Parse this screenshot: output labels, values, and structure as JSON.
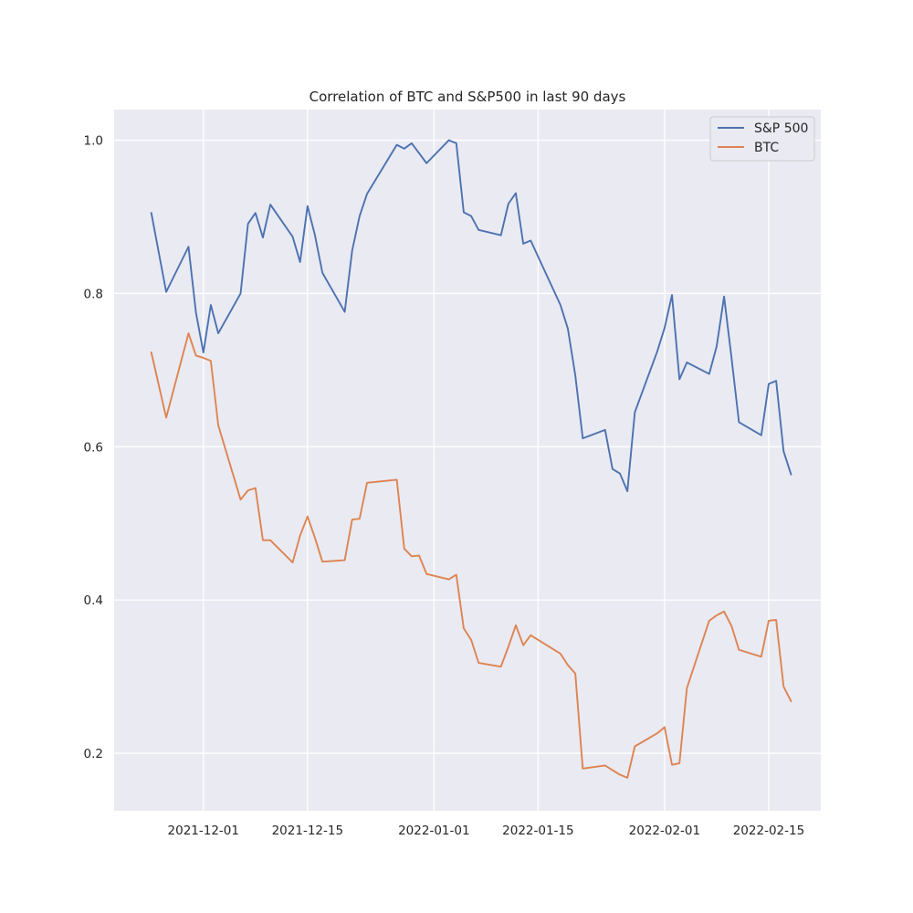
{
  "chart_data": {
    "type": "line",
    "title": "Correlation of BTC and S&P500 in last 90 days",
    "xlabel": "",
    "ylabel": "",
    "x_axis_type": "date",
    "xlim": [
      "2021-11-19",
      "2022-02-22"
    ],
    "ylim": [
      0.125,
      1.04
    ],
    "xticks": [
      "2021-12-01",
      "2021-12-15",
      "2022-01-01",
      "2022-01-15",
      "2022-02-01",
      "2022-02-15"
    ],
    "yticks": [
      0.2,
      0.4,
      0.6,
      0.8,
      1.0
    ],
    "ytick_labels": [
      "0.2",
      "0.4",
      "0.6",
      "0.8",
      "1.0"
    ],
    "grid": true,
    "legend_position": "top-right",
    "background": "#eaeaf2",
    "x": [
      "2021-11-24",
      "2021-11-26",
      "2021-11-29",
      "2021-11-30",
      "2021-12-01",
      "2021-12-02",
      "2021-12-03",
      "2021-12-06",
      "2021-12-07",
      "2021-12-08",
      "2021-12-09",
      "2021-12-10",
      "2021-12-13",
      "2021-12-14",
      "2021-12-15",
      "2021-12-16",
      "2021-12-17",
      "2021-12-20",
      "2021-12-21",
      "2021-12-22",
      "2021-12-23",
      "2021-12-27",
      "2021-12-28",
      "2021-12-29",
      "2021-12-30",
      "2021-12-31",
      "2022-01-03",
      "2022-01-04",
      "2022-01-05",
      "2022-01-06",
      "2022-01-07",
      "2022-01-10",
      "2022-01-11",
      "2022-01-12",
      "2022-01-13",
      "2022-01-14",
      "2022-01-18",
      "2022-01-19",
      "2022-01-20",
      "2022-01-21",
      "2022-01-24",
      "2022-01-25",
      "2022-01-26",
      "2022-01-27",
      "2022-01-28",
      "2022-01-31",
      "2022-02-01",
      "2022-02-02",
      "2022-02-03",
      "2022-02-04",
      "2022-02-07",
      "2022-02-08",
      "2022-02-09",
      "2022-02-10",
      "2022-02-11",
      "2022-02-14",
      "2022-02-15",
      "2022-02-16",
      "2022-02-17",
      "2022-02-18"
    ],
    "series": [
      {
        "name": "S&P 500",
        "color": "#4c72b0",
        "values": [
          0.905,
          0.802,
          0.861,
          0.775,
          0.723,
          0.785,
          0.748,
          0.8,
          0.891,
          0.905,
          0.873,
          0.916,
          0.874,
          0.841,
          0.914,
          0.876,
          0.827,
          0.776,
          0.856,
          0.901,
          0.93,
          0.994,
          0.989,
          0.996,
          0.983,
          0.97,
          1.0,
          0.996,
          0.906,
          0.901,
          0.883,
          0.876,
          0.917,
          0.931,
          0.865,
          0.869,
          0.785,
          0.754,
          0.693,
          0.611,
          0.622,
          0.571,
          0.565,
          0.542,
          0.645,
          0.724,
          0.755,
          0.798,
          0.688,
          0.71,
          0.695,
          0.731,
          0.796,
          0.716,
          0.632,
          0.615,
          0.682,
          0.686,
          0.594,
          0.564
        ]
      },
      {
        "name": "BTC",
        "color": "#dd8452",
        "values": [
          0.723,
          0.638,
          0.748,
          0.719,
          0.716,
          0.712,
          0.628,
          0.531,
          0.543,
          0.546,
          0.478,
          0.478,
          0.449,
          0.484,
          0.509,
          0.481,
          0.45,
          0.452,
          0.505,
          0.506,
          0.553,
          0.557,
          0.467,
          0.457,
          0.458,
          0.434,
          0.427,
          0.433,
          0.363,
          0.348,
          0.318,
          0.313,
          0.339,
          0.367,
          0.341,
          0.354,
          0.33,
          0.315,
          0.304,
          0.18,
          0.184,
          0.178,
          0.172,
          0.168,
          0.209,
          0.226,
          0.234,
          0.185,
          0.187,
          0.285,
          0.373,
          0.38,
          0.385,
          0.366,
          0.335,
          0.326,
          0.373,
          0.374,
          0.287,
          0.268
        ]
      }
    ]
  }
}
